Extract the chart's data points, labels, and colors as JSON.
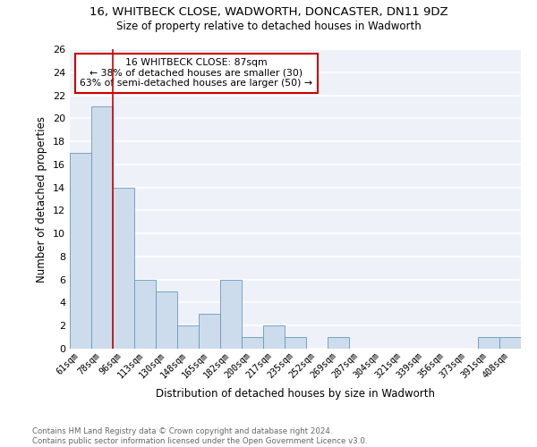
{
  "title": "16, WHITBECK CLOSE, WADWORTH, DONCASTER, DN11 9DZ",
  "subtitle": "Size of property relative to detached houses in Wadworth",
  "xlabel": "Distribution of detached houses by size in Wadworth",
  "ylabel": "Number of detached properties",
  "bar_color": "#ccdcec",
  "bar_edge_color": "#6699bb",
  "background_color": "#eef2f8",
  "grid_color": "white",
  "categories": [
    "61sqm",
    "78sqm",
    "96sqm",
    "113sqm",
    "130sqm",
    "148sqm",
    "165sqm",
    "182sqm",
    "200sqm",
    "217sqm",
    "235sqm",
    "252sqm",
    "269sqm",
    "287sqm",
    "304sqm",
    "321sqm",
    "339sqm",
    "356sqm",
    "373sqm",
    "391sqm",
    "408sqm"
  ],
  "values": [
    17,
    21,
    14,
    6,
    5,
    2,
    3,
    6,
    1,
    2,
    1,
    0,
    1,
    0,
    0,
    0,
    0,
    0,
    0,
    1,
    1
  ],
  "ylim": [
    0,
    26
  ],
  "yticks": [
    0,
    2,
    4,
    6,
    8,
    10,
    12,
    14,
    16,
    18,
    20,
    22,
    24,
    26
  ],
  "annotation_text": "16 WHITBECK CLOSE: 87sqm\n← 38% of detached houses are smaller (30)\n63% of semi-detached houses are larger (50) →",
  "footer_text": "Contains HM Land Registry data © Crown copyright and database right 2024.\nContains public sector information licensed under the Open Government Licence v3.0.",
  "red_line_color": "#cc0000",
  "red_line_x": 1.5
}
